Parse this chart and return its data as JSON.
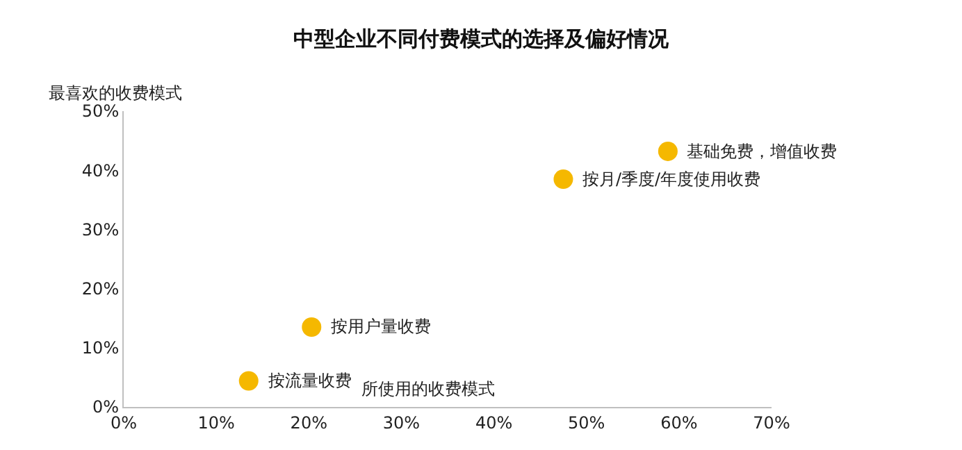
{
  "chart_data": {
    "type": "scatter",
    "title": "中型企业不同付费模式的选择及偏好情况",
    "xlabel": "所使用的收费模式",
    "ylabel": "最喜欢的收费模式",
    "x": [
      13.5,
      20.3,
      47.5,
      58.8
    ],
    "series": [
      {
        "color": "#f5b800",
        "values": [
          4.4,
          13.5,
          38.5,
          43.2
        ]
      }
    ],
    "annotations": [
      {
        "text": "按流量收费",
        "x": 13.5,
        "y": 4.4
      },
      {
        "text": "按用户量收费",
        "x": 20.3,
        "y": 13.5
      },
      {
        "text": "按月/季度/年度使用收费",
        "x": 47.5,
        "y": 38.5
      },
      {
        "text": "基础免费，增值收费",
        "x": 58.8,
        "y": 43.2
      }
    ],
    "xlim": [
      0,
      70
    ],
    "xticks": [
      {
        "value": 0,
        "label": "0%"
      },
      {
        "value": 10,
        "label": "10%"
      },
      {
        "value": 20,
        "label": "20%"
      },
      {
        "value": 30,
        "label": "30%"
      },
      {
        "value": 40,
        "label": "40%"
      },
      {
        "value": 50,
        "label": "50%"
      },
      {
        "value": 60,
        "label": "60%"
      },
      {
        "value": 70,
        "label": "70%"
      }
    ],
    "ylim": [
      0,
      50
    ],
    "yticks": [
      {
        "value": 0,
        "label": "0%"
      },
      {
        "value": 10,
        "label": "10%"
      },
      {
        "value": 20,
        "label": "20%"
      },
      {
        "value": 30,
        "label": "30%"
      },
      {
        "value": 40,
        "label": "40%"
      },
      {
        "value": 50,
        "label": "50%"
      }
    ],
    "legend": false,
    "marker": "circle"
  }
}
